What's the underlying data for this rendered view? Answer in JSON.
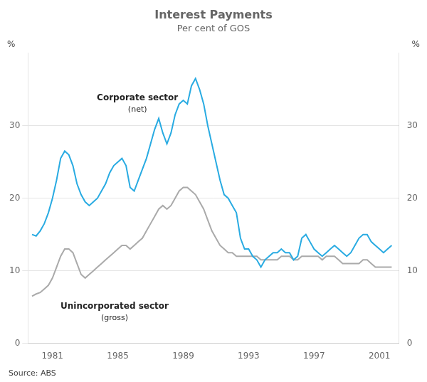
{
  "chart_data": {
    "type": "line",
    "title": "Interest Payments",
    "subtitle": "Per cent of GOS",
    "ylabel": "%",
    "y2label": "%",
    "source": "Source: ABS",
    "annotations": [
      {
        "text": [
          "Corporate sector",
          "(net)"
        ],
        "x": 1986.2,
        "y": 33.5
      },
      {
        "text": [
          "Unincorporated sector",
          "(gross)"
        ],
        "x": 1984.8,
        "y": 4.8
      }
    ],
    "xlim": [
      1979.5,
      2002.2
    ],
    "xticks": [
      1981,
      1985,
      1989,
      1993,
      1997,
      2001
    ],
    "ylim": [
      0,
      40
    ],
    "yticks": [
      0,
      10,
      20,
      30
    ],
    "y2lim": [
      0,
      40
    ],
    "y2ticks": [
      0,
      10,
      20,
      30
    ],
    "grid": true,
    "x": [
      1979.75,
      1980.0,
      1980.25,
      1980.5,
      1980.75,
      1981.0,
      1981.25,
      1981.5,
      1981.75,
      1982.0,
      1982.25,
      1982.5,
      1982.75,
      1983.0,
      1983.25,
      1983.5,
      1983.75,
      1984.0,
      1984.25,
      1984.5,
      1984.75,
      1985.0,
      1985.25,
      1985.5,
      1985.75,
      1986.0,
      1986.25,
      1986.5,
      1986.75,
      1987.0,
      1987.25,
      1987.5,
      1987.75,
      1988.0,
      1988.25,
      1988.5,
      1988.75,
      1989.0,
      1989.25,
      1989.5,
      1989.75,
      1990.0,
      1990.25,
      1990.5,
      1990.75,
      1991.0,
      1991.25,
      1991.5,
      1991.75,
      1992.0,
      1992.25,
      1992.5,
      1992.75,
      1993.0,
      1993.25,
      1993.5,
      1993.75,
      1994.0,
      1994.25,
      1994.5,
      1994.75,
      1995.0,
      1995.25,
      1995.5,
      1995.75,
      1996.0,
      1996.25,
      1996.5,
      1996.75,
      1997.0,
      1997.25,
      1997.5,
      1997.75,
      1998.0,
      1998.25,
      1998.5,
      1998.75,
      1999.0,
      1999.25,
      1999.5,
      1999.75,
      2000.0,
      2000.25,
      2000.5,
      2000.75,
      2001.0,
      2001.25,
      2001.5,
      2001.75
    ],
    "series": [
      {
        "color": "#aaaaaa",
        "values": [
          6.5,
          6.8,
          7.0,
          7.5,
          8.0,
          9.0,
          10.5,
          12.0,
          13.0,
          13.0,
          12.5,
          11.0,
          9.5,
          9.0,
          9.5,
          10.0,
          10.5,
          11.0,
          11.5,
          12.0,
          12.5,
          13.0,
          13.5,
          13.5,
          13.0,
          13.5,
          14.0,
          14.5,
          15.5,
          16.5,
          17.5,
          18.5,
          19.0,
          18.5,
          19.0,
          20.0,
          21.0,
          21.5,
          21.5,
          21.0,
          20.5,
          19.5,
          18.5,
          17.0,
          15.5,
          14.5,
          13.5,
          13.0,
          12.5,
          12.5,
          12.0,
          12.0,
          12.0,
          12.0,
          12.0,
          12.0,
          11.5,
          11.5,
          11.5,
          11.5,
          11.5,
          12.0,
          12.0,
          12.0,
          11.5,
          11.5,
          12.0,
          12.0,
          12.0,
          12.0,
          12.0,
          11.5,
          12.0,
          12.0,
          12.0,
          11.5,
          11.0,
          11.0,
          11.0,
          11.0,
          11.0,
          11.5,
          11.5,
          11.0,
          10.5,
          10.5,
          10.5,
          10.5,
          10.5
        ]
      },
      {
        "color": "#29abe2",
        "values": [
          15.0,
          14.8,
          15.5,
          16.5,
          18.0,
          20.0,
          22.5,
          25.5,
          26.5,
          26.0,
          24.5,
          22.0,
          20.5,
          19.5,
          19.0,
          19.5,
          20.0,
          21.0,
          22.0,
          23.5,
          24.5,
          25.0,
          25.5,
          24.5,
          21.5,
          21.0,
          22.5,
          24.0,
          25.5,
          27.5,
          29.5,
          31.0,
          29.0,
          27.5,
          29.0,
          31.5,
          33.0,
          33.5,
          33.0,
          35.5,
          36.5,
          35.0,
          33.0,
          30.0,
          27.5,
          25.0,
          22.5,
          20.5,
          20.0,
          19.0,
          18.0,
          14.5,
          13.0,
          13.0,
          12.0,
          11.5,
          10.5,
          11.5,
          12.0,
          12.5,
          12.5,
          13.0,
          12.5,
          12.5,
          11.5,
          12.0,
          14.5,
          15.0,
          14.0,
          13.0,
          12.5,
          12.0,
          12.5,
          13.0,
          13.5,
          13.0,
          12.5,
          12.0,
          12.5,
          13.5,
          14.5,
          15.0,
          15.0,
          14.0,
          13.5,
          13.0,
          12.5,
          13.0,
          13.5
        ]
      }
    ]
  }
}
